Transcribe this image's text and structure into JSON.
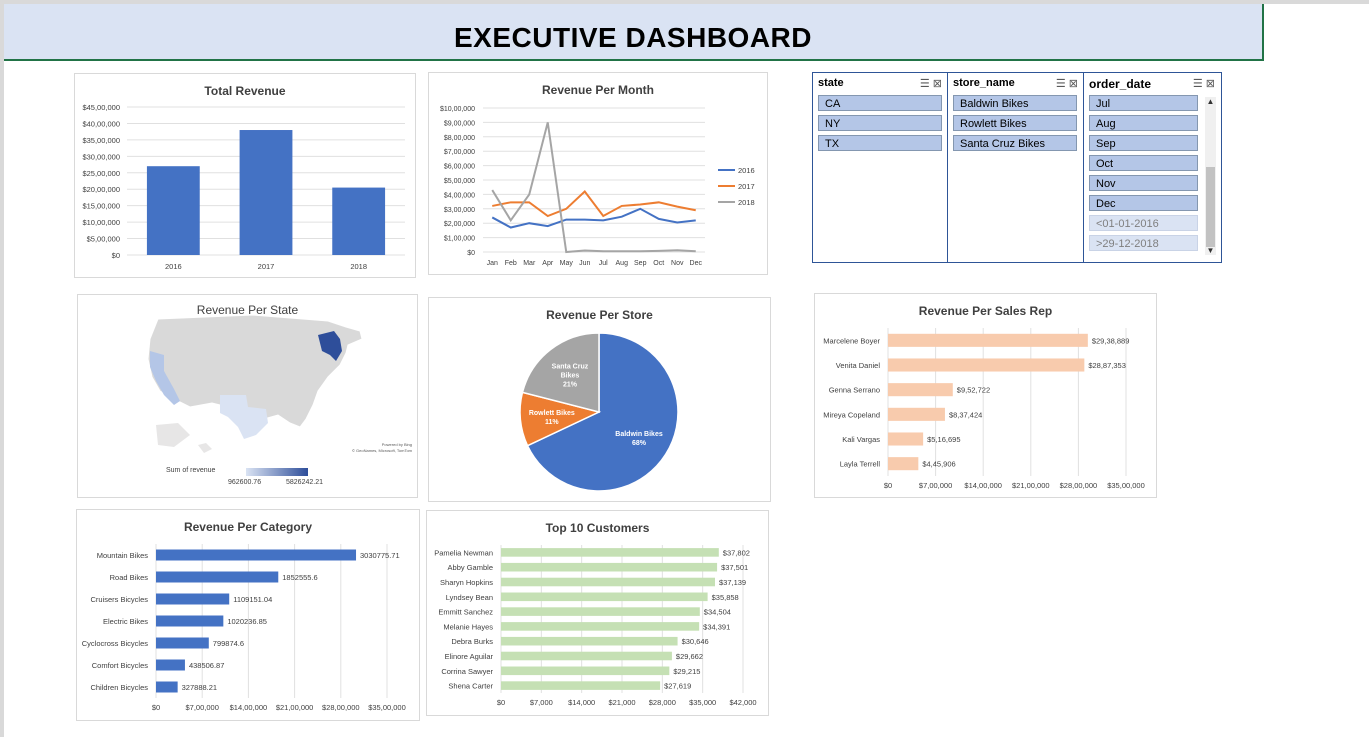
{
  "header": {
    "title": "EXECUTIVE DASHBOARD"
  },
  "colors": {
    "blue": "#4472c4",
    "orange": "#ed7d31",
    "gray": "#a5a5a5",
    "peach": "#f8cbad",
    "green": "#c5e0b4",
    "banner": "#dae3f3"
  },
  "total_revenue": {
    "title": "Total Revenue",
    "chart_data": {
      "type": "bar",
      "categories": [
        "2016",
        "2017",
        "2018"
      ],
      "values": [
        2700000,
        3800000,
        2050000
      ],
      "ylim": [
        0,
        4500000
      ],
      "ticks": [
        "$0",
        "$5,00,000",
        "$10,00,000",
        "$15,00,000",
        "$20,00,000",
        "$25,00,000",
        "$30,00,000",
        "$35,00,000",
        "$40,00,000",
        "$45,00,000"
      ]
    }
  },
  "revenue_month": {
    "title": "Revenue Per Month",
    "chart_data": {
      "type": "line",
      "categories": [
        "Jan",
        "Feb",
        "Mar",
        "Apr",
        "May",
        "Jun",
        "Jul",
        "Aug",
        "Sep",
        "Oct",
        "Nov",
        "Dec"
      ],
      "ylim": [
        0,
        1000000
      ],
      "ticks": [
        "$0",
        "$1,00,000",
        "$2,00,000",
        "$3,00,000",
        "$4,00,000",
        "$5,00,000",
        "$6,00,000",
        "$7,00,000",
        "$8,00,000",
        "$9,00,000",
        "$10,00,000"
      ],
      "series": [
        {
          "name": "2016",
          "color": "#4472c4",
          "values": [
            240000,
            170000,
            200000,
            180000,
            225000,
            225000,
            220000,
            245000,
            300000,
            230000,
            205000,
            220000
          ]
        },
        {
          "name": "2017",
          "color": "#ed7d31",
          "values": [
            320000,
            345000,
            345000,
            250000,
            300000,
            420000,
            250000,
            320000,
            330000,
            345000,
            315000,
            290000
          ]
        },
        {
          "name": "2018",
          "color": "#a5a5a5",
          "values": [
            430000,
            220000,
            400000,
            900000,
            0,
            10000,
            5000,
            5000,
            5000,
            8000,
            12000,
            5000
          ]
        }
      ]
    }
  },
  "slicers": [
    {
      "header": "state",
      "items": [
        {
          "label": "CA",
          "dim": false
        },
        {
          "label": "NY",
          "dim": false
        },
        {
          "label": "TX",
          "dim": false
        }
      ]
    },
    {
      "header": "store_name",
      "items": [
        {
          "label": "Baldwin Bikes",
          "dim": false
        },
        {
          "label": "Rowlett Bikes",
          "dim": false
        },
        {
          "label": "Santa Cruz Bikes",
          "dim": false
        }
      ]
    },
    {
      "header": "order_date",
      "items": [
        {
          "label": "Jul",
          "dim": false
        },
        {
          "label": "Aug",
          "dim": false
        },
        {
          "label": "Sep",
          "dim": false
        },
        {
          "label": "Oct",
          "dim": false
        },
        {
          "label": "Nov",
          "dim": false
        },
        {
          "label": "Dec",
          "dim": false
        },
        {
          "label": "<01-01-2016",
          "dim": true
        },
        {
          "label": ">29-12-2018",
          "dim": true
        }
      ]
    }
  ],
  "revenue_state": {
    "title": "Revenue Per State",
    "legend_label": "Sum of revenue",
    "legend_min": "962600.76",
    "legend_max": "5826242.21",
    "credit_1": "Powered by Bing",
    "credit_2": "© GeoNames, Microsoft, TomTom"
  },
  "revenue_store": {
    "title": "Revenue Per Store",
    "chart_data": {
      "type": "pie",
      "slices": [
        {
          "name": "Baldwin Bikes",
          "value": 68,
          "label": "68%",
          "color": "#4472c4"
        },
        {
          "name": "Rowlett Bikes",
          "value": 11,
          "label": "11%",
          "color": "#ed7d31"
        },
        {
          "name": "Santa Cruz Bikes",
          "value": 21,
          "label": "21%",
          "color": "#a5a5a5"
        }
      ]
    }
  },
  "revenue_rep": {
    "title": "Revenue Per Sales Rep",
    "chart_data": {
      "type": "bar",
      "orientation": "horizontal",
      "xlim": [
        0,
        3500000
      ],
      "ticks": [
        "$0",
        "$7,00,000",
        "$14,00,000",
        "$21,00,000",
        "$28,00,000",
        "$35,00,000"
      ],
      "categories": [
        "Marcelene Boyer",
        "Venita Daniel",
        "Genna Serrano",
        "Mireya Copeland",
        "Kali Vargas",
        "Layla Terrell"
      ],
      "values": [
        2938889,
        2887353,
        952722,
        837424,
        516695,
        445906
      ],
      "labels": [
        "$29,38,889",
        "$28,87,353",
        "$9,52,722",
        "$8,37,424",
        "$5,16,695",
        "$4,45,906"
      ]
    }
  },
  "revenue_category": {
    "title": "Revenue Per Category",
    "chart_data": {
      "type": "bar",
      "orientation": "horizontal",
      "xlim": [
        0,
        3500000
      ],
      "ticks": [
        "$0",
        "$7,00,000",
        "$14,00,000",
        "$21,00,000",
        "$28,00,000",
        "$35,00,000"
      ],
      "categories": [
        "Mountain Bikes",
        "Road Bikes",
        "Cruisers Bicycles",
        "Electric Bikes",
        "Cyclocross Bicycles",
        "Comfort Bicycles",
        "Children Bicycles"
      ],
      "values": [
        3030775.71,
        1852555.6,
        1109151.04,
        1020236.85,
        799874.6,
        438506.87,
        327888.21
      ],
      "labels": [
        "3030775.71",
        "1852555.6",
        "1109151.04",
        "1020236.85",
        "799874.6",
        "438506.87",
        "327888.21"
      ]
    }
  },
  "top_customers": {
    "title": "Top 10 Customers",
    "chart_data": {
      "type": "bar",
      "orientation": "horizontal",
      "xlim": [
        0,
        42000
      ],
      "ticks": [
        "$0",
        "$7,000",
        "$14,000",
        "$21,000",
        "$28,000",
        "$35,000",
        "$42,000"
      ],
      "categories": [
        "Pamelia Newman",
        "Abby Gamble",
        "Sharyn Hopkins",
        "Lyndsey Bean",
        "Emmitt Sanchez",
        "Melanie Hayes",
        "Debra Burks",
        "Elinore Aguilar",
        "Corrina Sawyer",
        "Shena Carter"
      ],
      "values": [
        37802,
        37501,
        37139,
        35858,
        34504,
        34391,
        30646,
        29662,
        29215,
        27619
      ],
      "labels": [
        "$37,802",
        "$37,501",
        "$37,139",
        "$35,858",
        "$34,504",
        "$34,391",
        "$30,646",
        "$29,662",
        "$29,215",
        "$27,619"
      ]
    }
  }
}
